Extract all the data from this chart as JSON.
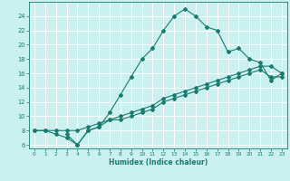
{
  "xlabel": "Humidex (Indice chaleur)",
  "bg_color": "#caf0f0",
  "grid_color": "#ffffff",
  "line_color": "#1a7a6e",
  "line1_x": [
    0,
    1,
    2,
    3,
    4,
    5,
    6,
    7,
    8,
    9,
    10,
    11,
    12,
    13,
    14,
    15,
    16,
    17,
    18,
    19,
    20,
    21,
    22,
    23
  ],
  "line1_y": [
    8,
    8,
    7.5,
    7,
    6,
    8,
    8.5,
    10.5,
    13,
    15.5,
    18,
    19.5,
    22,
    24,
    25,
    24,
    22.5,
    22,
    19,
    19.5,
    18,
    17.5,
    15,
    16
  ],
  "line2_x": [
    0,
    1,
    2,
    3,
    4,
    5,
    6,
    7,
    8,
    9,
    10,
    11,
    12,
    13,
    14,
    15,
    16,
    17,
    18,
    19,
    20,
    21,
    22,
    23
  ],
  "line2_y": [
    8,
    8,
    8,
    8,
    8,
    8.5,
    9,
    9.5,
    10,
    10.5,
    11,
    11.5,
    12.5,
    13,
    13.5,
    14,
    14.5,
    15,
    15.5,
    16,
    16.5,
    17,
    17,
    16
  ],
  "line3_x": [
    3,
    4,
    5,
    6,
    7,
    8,
    9,
    10,
    11,
    12,
    13,
    14,
    15,
    16,
    17,
    18,
    19,
    20,
    21,
    22,
    23
  ],
  "line3_y": [
    7.5,
    6,
    8,
    8.5,
    9.5,
    9.5,
    10,
    10.5,
    11,
    12,
    12.5,
    13,
    13.5,
    14,
    14.5,
    15,
    15.5,
    16,
    16.5,
    15.5,
    15.5
  ],
  "xlim": [
    -0.5,
    23.5
  ],
  "ylim": [
    5.5,
    26
  ],
  "yticks": [
    6,
    8,
    10,
    12,
    14,
    16,
    18,
    20,
    22,
    24
  ],
  "xticks": [
    0,
    1,
    2,
    3,
    4,
    5,
    6,
    7,
    8,
    9,
    10,
    11,
    12,
    13,
    14,
    15,
    16,
    17,
    18,
    19,
    20,
    21,
    22,
    23
  ]
}
